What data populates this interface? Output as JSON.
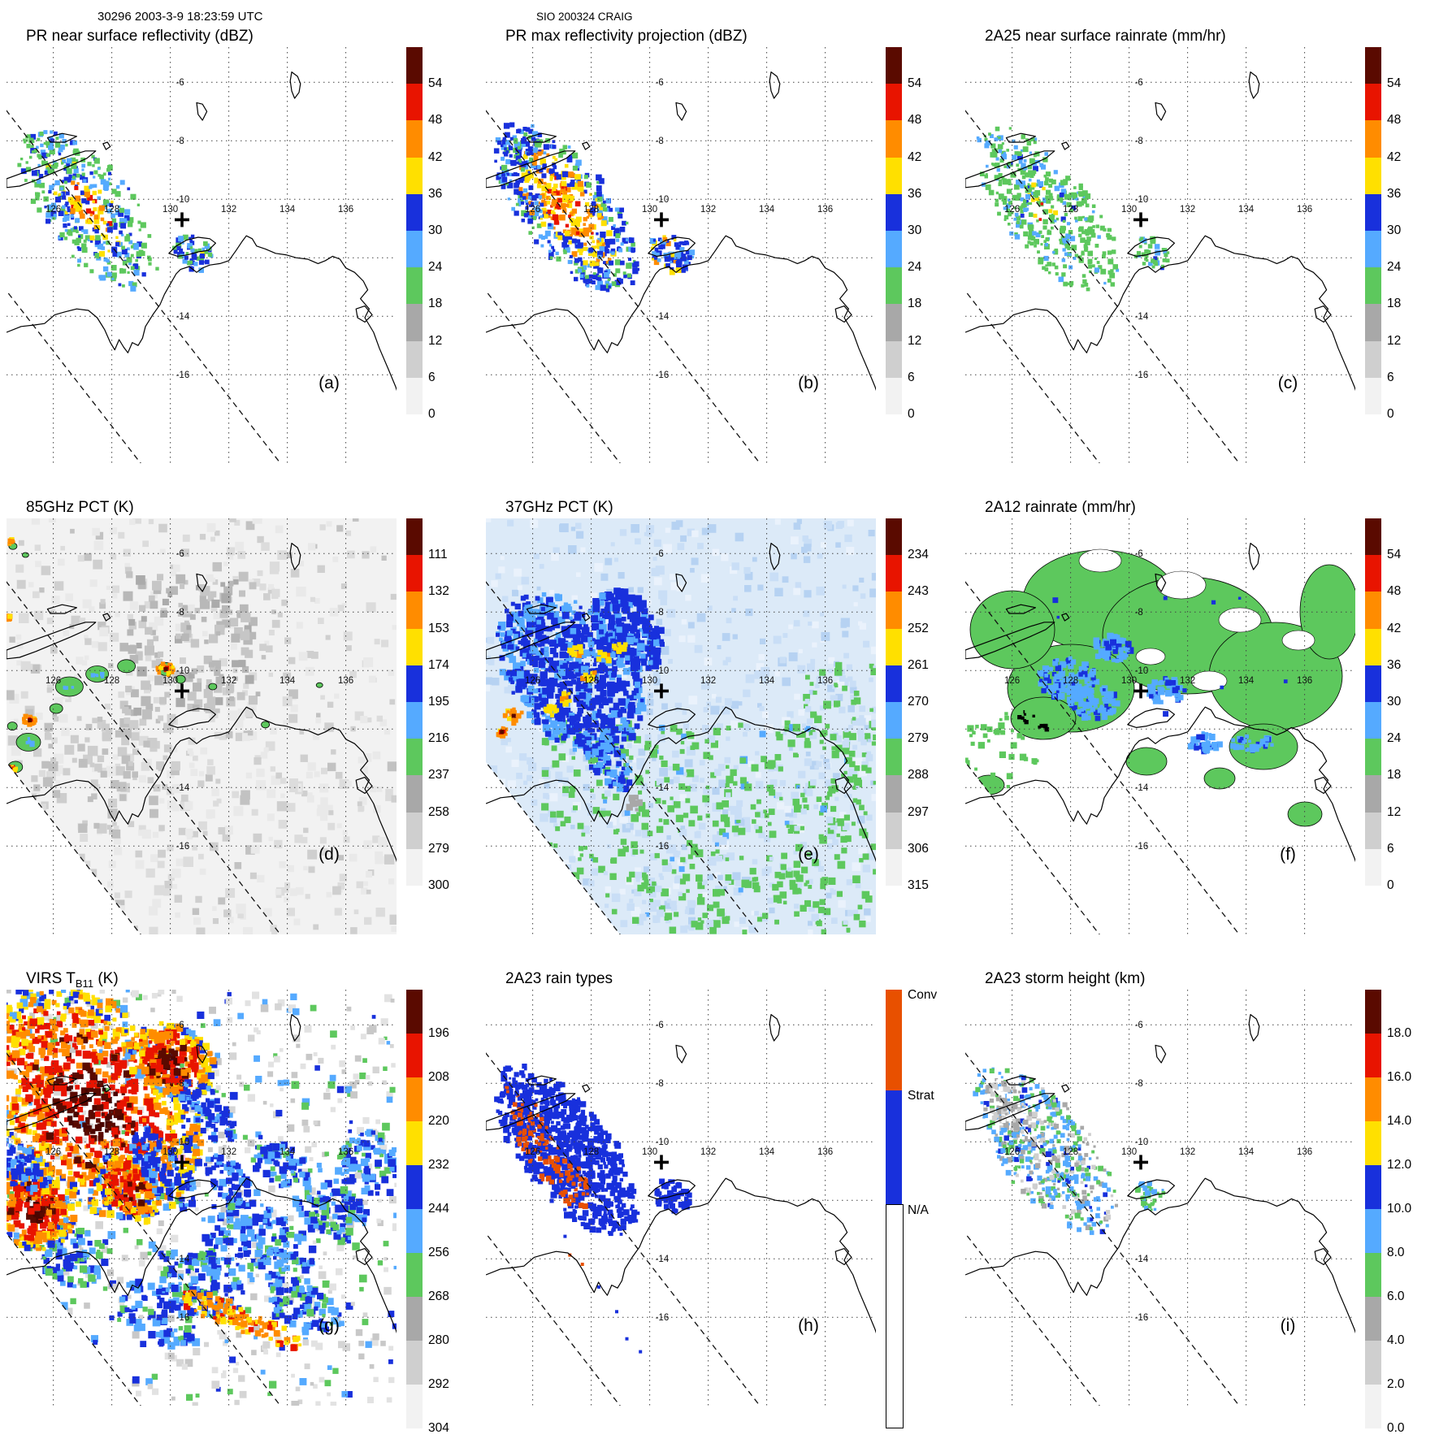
{
  "header": {
    "left": "30296 2003-3-9 18:23:59 UTC",
    "center": "SIO 200324 CRAIG"
  },
  "map": {
    "lon_ticks": [
      "126",
      "128",
      "130",
      "132",
      "134",
      "136"
    ],
    "lat_ticks": [
      "-6",
      "-8",
      "-10",
      "-14",
      "-16"
    ],
    "marker": {
      "symbol": "+",
      "lon": 130.4,
      "lat": -10.7
    }
  },
  "colors": {
    "maroon": "#5A0A00",
    "dark_maroon": "#4A0500",
    "red": "#E81400",
    "orange": "#FF8C00",
    "yellow": "#FFE000",
    "blue": "#1830DC",
    "light_blue": "#55AAFF",
    "pale_blue": "#C9DEF6",
    "green": "#5DC85D",
    "gray": "#A8A8A8",
    "light_gray": "#CFCFCF",
    "near_white": "#F2F2F2",
    "conv": "#E85000",
    "strat": "#1830DC",
    "na": "#FFFFFF",
    "pink": "#FFAAD2"
  },
  "panels": [
    {
      "letter": "(a)",
      "title_prefix": "PR near surface reflectivity (dBZ)",
      "title_sub": "",
      "title_suffix": "",
      "colorbar": {
        "type": "scale",
        "labels": [
          "54",
          "48",
          "42",
          "36",
          "30",
          "24",
          "18",
          "12",
          "6",
          "0"
        ],
        "segment_colors": [
          "maroon",
          "red",
          "orange",
          "yellow",
          "blue",
          "light_blue",
          "green",
          "gray",
          "light_gray",
          "near_white"
        ]
      }
    },
    {
      "letter": "(b)",
      "title_prefix": "PR max reflectivity projection (dBZ)",
      "title_sub": "",
      "title_suffix": "",
      "colorbar": {
        "type": "scale",
        "labels": [
          "54",
          "48",
          "42",
          "36",
          "30",
          "24",
          "18",
          "12",
          "6",
          "0"
        ],
        "segment_colors": [
          "maroon",
          "red",
          "orange",
          "yellow",
          "blue",
          "light_blue",
          "green",
          "gray",
          "light_gray",
          "near_white"
        ]
      }
    },
    {
      "letter": "(c)",
      "title_prefix": "2A25 near surface rainrate (mm/hr)",
      "title_sub": "",
      "title_suffix": "",
      "colorbar": {
        "type": "scale",
        "labels": [
          "54",
          "48",
          "42",
          "36",
          "30",
          "24",
          "18",
          "12",
          "6",
          "0"
        ],
        "segment_colors": [
          "maroon",
          "red",
          "orange",
          "yellow",
          "blue",
          "light_blue",
          "green",
          "gray",
          "light_gray",
          "near_white"
        ]
      }
    },
    {
      "letter": "(d)",
      "title_prefix": "85GHz PCT (K)",
      "title_sub": "",
      "title_suffix": "",
      "colorbar": {
        "type": "scale",
        "labels": [
          "111",
          "132",
          "153",
          "174",
          "195",
          "216",
          "237",
          "258",
          "279",
          "300"
        ],
        "segment_colors": [
          "maroon",
          "red",
          "orange",
          "yellow",
          "blue",
          "light_blue",
          "green",
          "gray",
          "light_gray",
          "near_white"
        ]
      }
    },
    {
      "letter": "(e)",
      "title_prefix": "37GHz PCT (K)",
      "title_sub": "",
      "title_suffix": "",
      "colorbar": {
        "type": "scale",
        "labels": [
          "234",
          "243",
          "252",
          "261",
          "270",
          "279",
          "288",
          "297",
          "306",
          "315"
        ],
        "segment_colors": [
          "maroon",
          "red",
          "orange",
          "yellow",
          "blue",
          "light_blue",
          "green",
          "gray",
          "light_gray",
          "near_white"
        ]
      }
    },
    {
      "letter": "(f)",
      "title_prefix": "2A12 rainrate (mm/hr)",
      "title_sub": "",
      "title_suffix": "",
      "colorbar": {
        "type": "scale",
        "labels": [
          "54",
          "48",
          "42",
          "36",
          "30",
          "24",
          "18",
          "12",
          "6",
          "0"
        ],
        "segment_colors": [
          "maroon",
          "red",
          "orange",
          "yellow",
          "blue",
          "light_blue",
          "green",
          "gray",
          "light_gray",
          "near_white"
        ]
      }
    },
    {
      "letter": "(g)",
      "title_prefix": "VIRS T",
      "title_sub": "B11",
      "title_suffix": " (K)",
      "colorbar": {
        "type": "scale",
        "labels": [
          "196",
          "208",
          "220",
          "232",
          "244",
          "256",
          "268",
          "280",
          "292",
          "304"
        ],
        "segment_colors": [
          "maroon",
          "red",
          "orange",
          "yellow",
          "blue",
          "light_blue",
          "green",
          "gray",
          "light_gray",
          "near_white"
        ]
      }
    },
    {
      "letter": "(h)",
      "title_prefix": "2A23 rain types",
      "title_sub": "",
      "title_suffix": "",
      "colorbar": {
        "type": "categorical",
        "labels": [
          "Conv",
          "Strat",
          "N/A"
        ],
        "segment_colors": [
          "conv",
          "strat",
          "na"
        ]
      }
    },
    {
      "letter": "(i)",
      "title_prefix": "2A23 storm height (km)",
      "title_sub": "",
      "title_suffix": "",
      "colorbar": {
        "type": "scale",
        "labels": [
          "18.0",
          "16.0",
          "14.0",
          "12.0",
          "10.0",
          "8.0",
          "6.0",
          "4.0",
          "2.0",
          "0.0"
        ],
        "segment_colors": [
          "maroon",
          "red",
          "orange",
          "yellow",
          "blue",
          "light_blue",
          "green",
          "gray",
          "light_gray",
          "near_white"
        ]
      }
    }
  ],
  "chart_data": [
    {
      "panel": "a",
      "type": "heatmap",
      "title": "PR near surface reflectivity (dBZ)",
      "units": "dBZ",
      "colorbar_ticks": [
        54,
        48,
        42,
        36,
        30,
        24,
        18,
        12,
        6,
        0
      ],
      "x_ticks": [
        126,
        128,
        130,
        132,
        134,
        136
      ],
      "y_ticks": [
        -6,
        -8,
        -10,
        -14,
        -16
      ],
      "lon_range": [
        124.4,
        137.8
      ],
      "lat_range": [
        -18.8,
        -4.8
      ],
      "grid": "dotted",
      "summary": "Narrow PR swath over Timor Sea; rain band near 125-129E, 9-12S with 36-48 dBZ cores; isolated cell near 130.7E, 11.9S"
    },
    {
      "panel": "b",
      "type": "heatmap",
      "title": "PR max reflectivity projection (dBZ)",
      "units": "dBZ",
      "colorbar_ticks": [
        54,
        48,
        42,
        36,
        30,
        24,
        18,
        12,
        6,
        0
      ],
      "x_ticks": [
        126,
        128,
        130,
        132,
        134,
        136
      ],
      "y_ticks": [
        -6,
        -8,
        -10,
        -14,
        -16
      ],
      "lon_range": [
        124.4,
        137.8
      ],
      "lat_range": [
        -18.8,
        -4.8
      ],
      "grid": "dotted",
      "summary": "Same swath; column-max reflectivity widely 36-48 dBZ (yellow/orange) with blue 24-36 dBZ fringe"
    },
    {
      "panel": "c",
      "type": "heatmap",
      "title": "2A25 near surface rainrate (mm/hr)",
      "units": "mm/hr",
      "colorbar_ticks": [
        54,
        48,
        42,
        36,
        30,
        24,
        18,
        12,
        6,
        0
      ],
      "x_ticks": [
        126,
        128,
        130,
        132,
        134,
        136
      ],
      "y_ticks": [
        -6,
        -8,
        -10,
        -14,
        -16
      ],
      "lon_range": [
        124.4,
        137.8
      ],
      "lat_range": [
        -18.8,
        -4.8
      ],
      "grid": "dotted",
      "summary": "Rainrates mostly below 12 mm/hr (green/light blue) along the PR swath with isolated heavier cells"
    },
    {
      "panel": "d",
      "type": "heatmap",
      "title": "85GHz PCT (K)",
      "units": "K",
      "colorbar_ticks": [
        111,
        132,
        153,
        174,
        195,
        216,
        237,
        258,
        279,
        300
      ],
      "x_ticks": [
        126,
        128,
        130,
        132,
        134,
        136
      ],
      "y_ticks": [
        -6,
        -8,
        -10,
        -14,
        -16
      ],
      "lon_range": [
        124.4,
        137.8
      ],
      "lat_range": [
        -18.8,
        -4.8
      ],
      "grid": "dotted",
      "summary": "Mostly 258-300 K (gray); depressed PCT patches 216-237 K (green) and small cores below 174 K near 129.8E 10S and 125.2E 11.7S"
    },
    {
      "panel": "e",
      "type": "heatmap",
      "title": "37GHz PCT (K)",
      "units": "K",
      "colorbar_ticks": [
        234,
        243,
        252,
        261,
        270,
        279,
        288,
        297,
        306,
        315
      ],
      "x_ticks": [
        126,
        128,
        130,
        132,
        134,
        136
      ],
      "y_ticks": [
        -6,
        -8,
        -10,
        -14,
        -16
      ],
      "lon_range": [
        124.4,
        137.8
      ],
      "lat_range": [
        -18.8,
        -4.8
      ],
      "grid": "dotted",
      "summary": "Pale blue 279-288 K background, green 288-297 K to the southeast; depressed blue region 261-279 K with yellow/red cores near 125-128E, 9-12S"
    },
    {
      "panel": "f",
      "type": "heatmap",
      "title": "2A12 rainrate (mm/hr)",
      "units": "mm/hr",
      "colorbar_ticks": [
        54,
        48,
        42,
        36,
        30,
        24,
        18,
        12,
        6,
        0
      ],
      "x_ticks": [
        126,
        128,
        130,
        132,
        134,
        136
      ],
      "y_ticks": [
        -6,
        -8,
        -10,
        -14,
        -16
      ],
      "lon_range": [
        124.4,
        137.8
      ],
      "lat_range": [
        -18.8,
        -4.8
      ],
      "grid": "dotted",
      "summary": "Widespread light rain (green) with embedded 6-18 mm/hr light-blue/blue patches near 127-131E, 9-12S"
    },
    {
      "panel": "g",
      "type": "heatmap",
      "title": "VIRS TB11 (K)",
      "units": "K",
      "colorbar_ticks": [
        196,
        208,
        220,
        232,
        244,
        256,
        268,
        280,
        292,
        304
      ],
      "x_ticks": [
        126,
        128,
        130,
        132,
        134,
        136
      ],
      "y_ticks": [
        -6,
        -8,
        -10,
        -14,
        -16
      ],
      "lon_range": [
        124.4,
        137.8
      ],
      "lat_range": [
        -18.8,
        -4.8
      ],
      "grid": "dotted",
      "summary": "Extensive cold cloud shield below 220 K (orange/red) with coldest tops below 208 K (dark red) over 124-131E, 5-12S; warmer mottled 256-304 K field southeast"
    },
    {
      "panel": "h",
      "type": "heatmap",
      "title": "2A23 rain types",
      "categories": [
        "Conv",
        "Strat",
        "N/A"
      ],
      "x_ticks": [
        126,
        128,
        130,
        132,
        134,
        136
      ],
      "y_ticks": [
        -6,
        -8,
        -10,
        -14,
        -16
      ],
      "lon_range": [
        124.4,
        137.8
      ],
      "lat_range": [
        -18.8,
        -4.8
      ],
      "grid": "dotted",
      "summary": "Mostly stratiform (blue) swath with embedded convective (orange) streaks near 125-128E, 9-11.5S"
    },
    {
      "panel": "i",
      "type": "heatmap",
      "title": "2A23 storm height (km)",
      "units": "km",
      "colorbar_ticks": [
        18.0,
        16.0,
        14.0,
        12.0,
        10.0,
        8.0,
        6.0,
        4.0,
        2.0,
        0.0
      ],
      "x_ticks": [
        126,
        128,
        130,
        132,
        134,
        136
      ],
      "y_ticks": [
        -6,
        -8,
        -10,
        -14,
        -16
      ],
      "lon_range": [
        124.4,
        137.8
      ],
      "lat_range": [
        -18.8,
        -4.8
      ],
      "grid": "dotted",
      "summary": "Storm heights mostly 6-10 km (green/light blue) along the PR swath, locally higher"
    }
  ]
}
